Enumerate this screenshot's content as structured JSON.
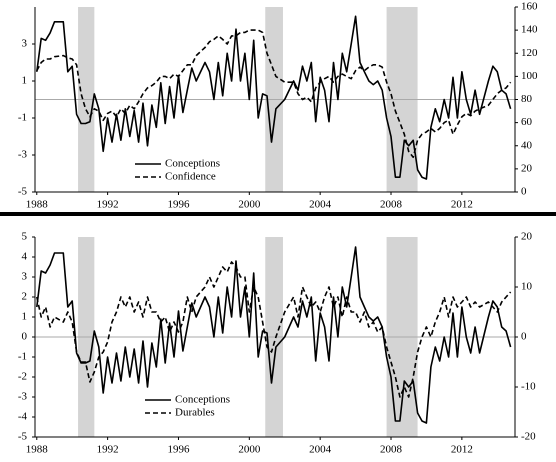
{
  "chart_data": [
    {
      "type": "line",
      "x": [
        1988,
        1988.25,
        1988.5,
        1988.75,
        1989,
        1989.5,
        1989.75,
        1990,
        1990.25,
        1990.5,
        1990.75,
        1991,
        1991.25,
        1991.5,
        1991.75,
        1992,
        1992.25,
        1992.5,
        1992.75,
        1993,
        1993.25,
        1993.5,
        1993.75,
        1994,
        1994.25,
        1994.5,
        1994.75,
        1995,
        1995.25,
        1995.5,
        1995.75,
        1996,
        1996.25,
        1996.5,
        1996.75,
        1997,
        1997.5,
        1997.75,
        1998,
        1998.25,
        1998.5,
        1998.75,
        1999,
        1999.25,
        1999.5,
        1999.75,
        2000,
        2000.25,
        2000.5,
        2000.75,
        2001,
        2001.25,
        2001.5,
        2002,
        2002.5,
        2002.75,
        2003,
        2003.25,
        2003.5,
        2003.75,
        2004,
        2004.25,
        2004.5,
        2004.75,
        2005,
        2005.25,
        2005.5,
        2005.75,
        2006,
        2006.25,
        2006.5,
        2006.75,
        2007,
        2007.25,
        2007.5,
        2007.75,
        2008,
        2008.25,
        2008.5,
        2008.75,
        2009,
        2009.25,
        2009.5,
        2009.75,
        2010,
        2010.25,
        2010.5,
        2010.75,
        2011,
        2011.25,
        2011.5,
        2011.75,
        2012,
        2012.25,
        2012.5,
        2012.75,
        2013,
        2013.5,
        2013.75,
        2014,
        2014.25,
        2014.5,
        2014.75
      ],
      "series": [
        {
          "name": "Conceptions",
          "color": "#000000",
          "dash": false,
          "axis": "y",
          "values": [
            1.5,
            3.3,
            3.2,
            3.6,
            4.2,
            4.2,
            1.5,
            1.8,
            -0.8,
            -1.3,
            -1.3,
            -1.2,
            0.3,
            -0.5,
            -2.8,
            -1.0,
            -2.3,
            -0.8,
            -2.2,
            -0.5,
            -2.0,
            -0.6,
            -2.3,
            -0.2,
            -2.5,
            -0.3,
            -1.5,
            0.9,
            -1.3,
            0.7,
            -1.0,
            1.3,
            -0.7,
            0.5,
            1.7,
            1.0,
            2.0,
            1.5,
            0.0,
            2.0,
            0.2,
            2.5,
            1.0,
            3.8,
            1.0,
            2.5,
            0.0,
            3.2,
            -1.0,
            0.3,
            0.2,
            -2.3,
            -0.5,
            0.0,
            1.0,
            0.5,
            1.8,
            1.0,
            2.0,
            -1.2,
            1.2,
            0.5,
            -1.2,
            2.0,
            0.0,
            2.5,
            1.5,
            3.0,
            4.5,
            2.0,
            1.5,
            1.0,
            0.8,
            1.0,
            0.5,
            -1.0,
            -2.0,
            -4.2,
            -4.2,
            -2.2,
            -2.5,
            -2.2,
            -3.8,
            -4.2,
            -4.3,
            -1.5,
            -0.5,
            -1.2,
            0.0,
            -1.0,
            1.2,
            -1.0,
            1.5,
            0.0,
            -0.8,
            0.5,
            -0.8,
            1.0,
            1.8,
            1.5,
            0.5,
            0.3,
            -0.5
          ]
        },
        {
          "name": "Confidence",
          "color": "#000000",
          "dash": true,
          "axis": "y2",
          "values": [
            105,
            112,
            115,
            115,
            117,
            118,
            116,
            115,
            110,
            85,
            72,
            65,
            72,
            70,
            62,
            68,
            70,
            65,
            72,
            68,
            75,
            72,
            78,
            85,
            90,
            92,
            95,
            100,
            100,
            98,
            102,
            100,
            105,
            110,
            110,
            118,
            125,
            130,
            132,
            135,
            132,
            128,
            135,
            135,
            138,
            138,
            140,
            140,
            140,
            138,
            120,
            110,
            100,
            95,
            95,
            85,
            80,
            82,
            78,
            90,
            95,
            98,
            100,
            95,
            100,
            102,
            100,
            98,
            105,
            108,
            105,
            108,
            110,
            110,
            108,
            95,
            85,
            70,
            60,
            50,
            35,
            30,
            45,
            50,
            52,
            55,
            52,
            55,
            60,
            62,
            50,
            58,
            65,
            68,
            66,
            70,
            72,
            75,
            80,
            85,
            88,
            90,
            95
          ]
        }
      ],
      "shaded": [
        [
          1990.33,
          1991.25
        ],
        [
          2000.9,
          2001.9
        ],
        [
          2007.75,
          2009.5
        ]
      ],
      "hline": 0,
      "xlim": [
        1987.9,
        2015
      ],
      "xticks": [
        1988,
        1992,
        1996,
        2000,
        2004,
        2008,
        2012
      ],
      "ylim": [
        -5,
        5
      ],
      "yticks": [
        -5,
        -3,
        -1,
        1,
        3
      ],
      "y2lim": [
        0,
        160
      ],
      "y2ticks": [
        0,
        20,
        40,
        60,
        80,
        100,
        120,
        140,
        160
      ]
    },
    {
      "type": "line",
      "x": [
        1988,
        1988.25,
        1988.5,
        1988.75,
        1989,
        1989.5,
        1989.75,
        1990,
        1990.25,
        1990.5,
        1990.75,
        1991,
        1991.25,
        1991.5,
        1991.75,
        1992,
        1992.25,
        1992.5,
        1992.75,
        1993,
        1993.25,
        1993.5,
        1993.75,
        1994,
        1994.25,
        1994.5,
        1994.75,
        1995,
        1995.25,
        1995.5,
        1995.75,
        1996,
        1996.25,
        1996.5,
        1996.75,
        1997,
        1997.5,
        1997.75,
        1998,
        1998.25,
        1998.5,
        1998.75,
        1999,
        1999.25,
        1999.5,
        1999.75,
        2000,
        2000.25,
        2000.5,
        2000.75,
        2001,
        2001.25,
        2001.5,
        2002,
        2002.5,
        2002.75,
        2003,
        2003.25,
        2003.5,
        2003.75,
        2004,
        2004.25,
        2004.5,
        2004.75,
        2005,
        2005.25,
        2005.5,
        2005.75,
        2006,
        2006.25,
        2006.5,
        2006.75,
        2007,
        2007.25,
        2007.5,
        2007.75,
        2008,
        2008.25,
        2008.5,
        2008.75,
        2009,
        2009.25,
        2009.5,
        2009.75,
        2010,
        2010.25,
        2010.5,
        2010.75,
        2011,
        2011.25,
        2011.5,
        2011.75,
        2012,
        2012.25,
        2012.5,
        2012.75,
        2013,
        2013.5,
        2013.75,
        2014,
        2014.25,
        2014.5,
        2014.75
      ],
      "series": [
        {
          "name": "Conceptions",
          "color": "#000000",
          "dash": false,
          "axis": "y",
          "values": [
            1.5,
            3.3,
            3.2,
            3.6,
            4.2,
            4.2,
            1.5,
            1.8,
            -0.8,
            -1.3,
            -1.3,
            -1.2,
            0.3,
            -0.5,
            -2.8,
            -1.0,
            -2.3,
            -0.8,
            -2.2,
            -0.5,
            -2.0,
            -0.6,
            -2.3,
            -0.2,
            -2.5,
            -0.3,
            -1.5,
            0.9,
            -1.3,
            0.7,
            -1.0,
            1.3,
            -0.7,
            0.5,
            1.7,
            1.0,
            2.0,
            1.5,
            0.0,
            2.0,
            0.2,
            2.5,
            1.0,
            3.8,
            1.0,
            2.5,
            0.0,
            3.2,
            -1.0,
            0.3,
            0.2,
            -2.3,
            -0.5,
            0.0,
            1.0,
            0.5,
            1.8,
            1.0,
            2.0,
            -1.2,
            1.2,
            0.5,
            -1.2,
            2.0,
            0.0,
            2.5,
            1.5,
            3.0,
            4.5,
            2.0,
            1.5,
            1.0,
            0.8,
            1.0,
            0.5,
            -1.0,
            -2.0,
            -4.2,
            -4.2,
            -2.2,
            -2.5,
            -2.2,
            -3.8,
            -4.2,
            -4.3,
            -1.5,
            -0.5,
            -1.2,
            0.0,
            -1.0,
            1.2,
            -1.0,
            1.5,
            0.0,
            -0.8,
            0.5,
            -0.8,
            1.0,
            1.8,
            1.5,
            0.5,
            0.3,
            -0.5
          ]
        },
        {
          "name": "Durables",
          "color": "#000000",
          "dash": true,
          "axis": "y2",
          "values": [
            8,
            4,
            6,
            2,
            4,
            3,
            5,
            3,
            -3,
            -5,
            -5,
            -9,
            -7,
            -4,
            -3,
            -1,
            3,
            5,
            8,
            6,
            8,
            5,
            7,
            4,
            8,
            5,
            5,
            3,
            4,
            1,
            3,
            1,
            3,
            8,
            5,
            8,
            10,
            12,
            10,
            12,
            14,
            13,
            15,
            14,
            12,
            12,
            5,
            10,
            8,
            3,
            -2,
            -3,
            0,
            5,
            8,
            4,
            10,
            8,
            6,
            7,
            5,
            8,
            10,
            6,
            8,
            4,
            8,
            5,
            5,
            3,
            5,
            2,
            3,
            1,
            2,
            -2,
            -5,
            -8,
            -12,
            -10,
            -12,
            -8,
            -3,
            0,
            2,
            0,
            3,
            5,
            8,
            4,
            8,
            6,
            7,
            8,
            6,
            7,
            6,
            7,
            6,
            5,
            7,
            8,
            9
          ]
        }
      ],
      "shaded": [
        [
          1990.33,
          1991.25
        ],
        [
          2000.9,
          2001.9
        ],
        [
          2007.75,
          2009.5
        ]
      ],
      "hline": 0,
      "xlim": [
        1987.9,
        2015
      ],
      "xticks": [
        1988,
        1992,
        1996,
        2000,
        2004,
        2008,
        2012
      ],
      "ylim": [
        -5,
        5
      ],
      "yticks": [
        -5,
        -4,
        -3,
        -2,
        -1,
        0,
        1,
        2,
        3,
        4,
        5
      ],
      "y2lim": [
        -20,
        20
      ],
      "y2ticks": [
        -20,
        -10,
        0,
        10,
        20
      ]
    }
  ]
}
